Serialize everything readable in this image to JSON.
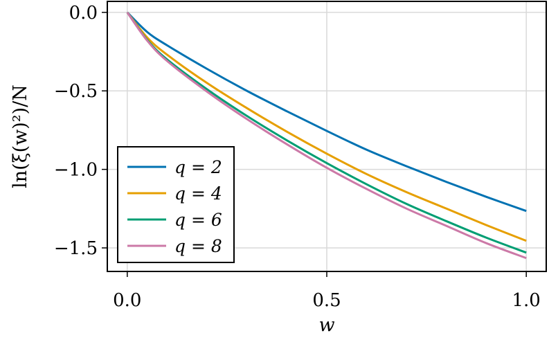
{
  "chart_data": {
    "type": "line",
    "title": "",
    "xlabel": "w",
    "ylabel": "ln(ξ(w)²)/N",
    "xlim": [
      -0.05,
      1.05
    ],
    "ylim": [
      -1.65,
      0.07
    ],
    "xticks": [
      0.0,
      0.5,
      1.0
    ],
    "xtick_labels": [
      "0.0",
      "0.5",
      "1.0"
    ],
    "yticks": [
      0.0,
      -0.5,
      -1.0,
      -1.5
    ],
    "ytick_labels": [
      "0.0",
      "−0.5",
      "−1.0",
      "−1.5"
    ],
    "grid": true,
    "legend_position": "bottom-left",
    "x": [
      0.0,
      0.05,
      0.1,
      0.2,
      0.3,
      0.4,
      0.5,
      0.6,
      0.7,
      0.8,
      0.9,
      1.0
    ],
    "series": [
      {
        "name": "q = 2",
        "color": "#0072b2",
        "values": [
          0.0,
          -0.125,
          -0.21,
          -0.36,
          -0.5,
          -0.63,
          -0.755,
          -0.875,
          -0.98,
          -1.08,
          -1.175,
          -1.265
        ]
      },
      {
        "name": "q = 4",
        "color": "#e69f00",
        "values": [
          0.0,
          -0.16,
          -0.27,
          -0.45,
          -0.61,
          -0.76,
          -0.9,
          -1.03,
          -1.145,
          -1.25,
          -1.355,
          -1.455
        ]
      },
      {
        "name": "q = 6",
        "color": "#009e73",
        "values": [
          0.0,
          -0.175,
          -0.3,
          -0.49,
          -0.66,
          -0.815,
          -0.96,
          -1.095,
          -1.22,
          -1.33,
          -1.435,
          -1.53
        ]
      },
      {
        "name": "q = 8",
        "color": "#cc79a7",
        "values": [
          0.0,
          -0.18,
          -0.31,
          -0.505,
          -0.68,
          -0.84,
          -0.99,
          -1.125,
          -1.25,
          -1.36,
          -1.47,
          -1.565
        ]
      }
    ]
  }
}
